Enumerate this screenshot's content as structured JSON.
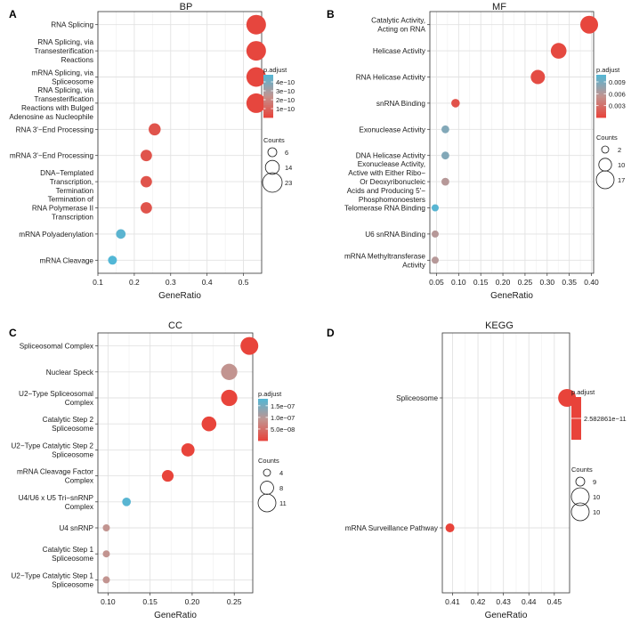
{
  "colors": {
    "low": "#e8433a",
    "mid": "#c29490",
    "high": "#52b7d6",
    "grid": "#e2e2e2"
  },
  "chart_data": [
    {
      "panel": "A",
      "title": "BP",
      "type": "scatter",
      "xlabel": "GeneRatio",
      "xlim": [
        0.1,
        0.55
      ],
      "xticks": [
        "0.1",
        "0.2",
        "0.3",
        "0.4",
        "0.5"
      ],
      "xtick_values": [
        0.1,
        0.2,
        0.3,
        0.4,
        0.5
      ],
      "categories": [
        [
          "RNA Splicing"
        ],
        [
          "RNA Splicing, via",
          "Transesterification",
          "Reactions"
        ],
        [
          "mRNA Splicing, via",
          "Spliceosome"
        ],
        [
          "RNA Splicing, via",
          "Transesterification",
          "Reactions with Bulged",
          "Adenosine as Nucleophile"
        ],
        [
          "RNA 3'−End Processing"
        ],
        [
          "mRNA 3'−End Processing"
        ],
        [
          "DNA−Templated",
          "Transcription,",
          "Termination"
        ],
        [
          "Termination of",
          "RNA Polymerase II",
          "Transcription"
        ],
        [
          "mRNA Polyadenylation"
        ],
        [
          "mRNA Cleavage"
        ]
      ],
      "points": [
        {
          "x": 0.535,
          "count": 23,
          "p": 1e-11
        },
        {
          "x": 0.535,
          "count": 23,
          "p": 1e-11
        },
        {
          "x": 0.535,
          "count": 23,
          "p": 1e-11
        },
        {
          "x": 0.535,
          "count": 23,
          "p": 1e-11
        },
        {
          "x": 0.256,
          "count": 11,
          "p": 5e-11
        },
        {
          "x": 0.233,
          "count": 10,
          "p": 5e-11
        },
        {
          "x": 0.233,
          "count": 10,
          "p": 5e-11
        },
        {
          "x": 0.233,
          "count": 10,
          "p": 5e-11
        },
        {
          "x": 0.163,
          "count": 7,
          "p": 4.6e-10
        },
        {
          "x": 0.14,
          "count": 6,
          "p": 4.8e-10
        }
      ],
      "color_legend": {
        "title": "p.adjust",
        "labels": [
          "4e−10",
          "3e−10",
          "2e−10",
          "1e−10"
        ],
        "values": [
          4e-10,
          3e-10,
          2e-10,
          1e-10
        ],
        "min": 0,
        "max": 4.8e-10
      },
      "size_legend": {
        "title": "Counts",
        "labels": [
          "6",
          "14",
          "23"
        ],
        "values": [
          6,
          14,
          23
        ]
      }
    },
    {
      "panel": "B",
      "title": "MF",
      "type": "scatter",
      "xlabel": "GeneRatio",
      "xlim": [
        0.035,
        0.405
      ],
      "xticks": [
        "0.05",
        "0.10",
        "0.15",
        "0.20",
        "0.25",
        "0.30",
        "0.35",
        "0.40"
      ],
      "xtick_values": [
        0.05,
        0.1,
        0.15,
        0.2,
        0.25,
        0.3,
        0.35,
        0.4
      ],
      "categories": [
        [
          "Catalytic Activity,",
          "Acting on RNA"
        ],
        [
          "Helicase Activity"
        ],
        [
          "RNA Helicase Activity"
        ],
        [
          "snRNA Binding"
        ],
        [
          "Exonuclease Activity"
        ],
        [
          "DNA Helicase Activity"
        ],
        [
          "Exonuclease Activity,",
          "Active with Either Ribo−",
          "Or Deoxyribonucleic",
          "Acids and Producing 5'−",
          "Phosphomonoesters"
        ],
        [
          "Telomerase RNA Binding"
        ],
        [
          "U6 snRNA Binding"
        ],
        [
          "mRNA Methyltransferase",
          "Activity"
        ]
      ],
      "points": [
        {
          "x": 0.395,
          "count": 17,
          "p": 0.0002
        },
        {
          "x": 0.326,
          "count": 14,
          "p": 0.0004
        },
        {
          "x": 0.279,
          "count": 12,
          "p": 0.0006
        },
        {
          "x": 0.093,
          "count": 4,
          "p": 0.001
        },
        {
          "x": 0.07,
          "count": 3,
          "p": 0.0085
        },
        {
          "x": 0.07,
          "count": 3,
          "p": 0.0085
        },
        {
          "x": 0.07,
          "count": 3,
          "p": 0.006
        },
        {
          "x": 0.047,
          "count": 2,
          "p": 0.0105
        },
        {
          "x": 0.047,
          "count": 2,
          "p": 0.006
        },
        {
          "x": 0.047,
          "count": 2,
          "p": 0.006
        }
      ],
      "color_legend": {
        "title": "p.adjust",
        "labels": [
          "0.009",
          "0.006",
          "0.003"
        ],
        "values": [
          0.009,
          0.006,
          0.003
        ],
        "min": 0,
        "max": 0.0108
      },
      "size_legend": {
        "title": "Counts",
        "labels": [
          "2",
          "10",
          "17"
        ],
        "values": [
          2,
          10,
          17
        ]
      }
    },
    {
      "panel": "C",
      "title": "CC",
      "type": "scatter",
      "xlabel": "GeneRatio",
      "xlim": [
        0.088,
        0.272
      ],
      "xticks": [
        "0.10",
        "0.15",
        "0.20",
        "0.25"
      ],
      "xtick_values": [
        0.1,
        0.15,
        0.2,
        0.25
      ],
      "categories": [
        [
          "Spliceosomal Complex"
        ],
        [
          "Nuclear Speck"
        ],
        [
          "U2−Type Spliceosomal",
          "Complex"
        ],
        [
          "Catalytic Step 2",
          "Spliceosome"
        ],
        [
          "U2−Type Catalytic Step 2",
          "Spliceosome"
        ],
        [
          "mRNA Cleavage Factor",
          "Complex"
        ],
        [
          "U4/U6 x U5 Tri−snRNP",
          "Complex"
        ],
        [
          "U4 snRNP"
        ],
        [
          "Catalytic Step 1",
          "Spliceosome"
        ],
        [
          "U2−Type Catalytic Step 1",
          "Spliceosome"
        ]
      ],
      "points": [
        {
          "x": 0.268,
          "count": 11,
          "p": 1e-09
        },
        {
          "x": 0.244,
          "count": 10,
          "p": 9e-08
        },
        {
          "x": 0.244,
          "count": 10,
          "p": 1e-09
        },
        {
          "x": 0.22,
          "count": 9,
          "p": 1e-09
        },
        {
          "x": 0.195,
          "count": 8,
          "p": 1e-09
        },
        {
          "x": 0.171,
          "count": 7,
          "p": 1e-09
        },
        {
          "x": 0.122,
          "count": 5,
          "p": 1.75e-07
        },
        {
          "x": 0.098,
          "count": 4,
          "p": 9e-08
        },
        {
          "x": 0.098,
          "count": 4,
          "p": 9e-08
        },
        {
          "x": 0.098,
          "count": 4,
          "p": 9e-08
        }
      ],
      "color_legend": {
        "title": "p.adjust",
        "labels": [
          "1.5e−07",
          "1.0e−07",
          "5.0e−08"
        ],
        "values": [
          1.5e-07,
          1e-07,
          5e-08
        ],
        "min": 0,
        "max": 1.8e-07
      },
      "size_legend": {
        "title": "Counts",
        "labels": [
          "4",
          "8",
          "11"
        ],
        "values": [
          4,
          8,
          11
        ]
      }
    },
    {
      "panel": "D",
      "title": "KEGG",
      "type": "scatter",
      "xlabel": "GeneRatio",
      "xlim": [
        0.406,
        0.456
      ],
      "xticks": [
        "0.41",
        "0.42",
        "0.43",
        "0.44",
        "0.45"
      ],
      "xtick_values": [
        0.41,
        0.42,
        0.43,
        0.44,
        0.45
      ],
      "categories": [
        [
          "Spliceosome"
        ],
        [
          "mRNA Surveillance Pathway"
        ]
      ],
      "points": [
        {
          "x": 0.455,
          "count": 10,
          "p": 2.582861e-11
        },
        {
          "x": 0.409,
          "count": 9,
          "p": 2.582861e-11
        }
      ],
      "color_legend": {
        "title": "p.adjust",
        "labels": [
          "2.582861e−11"
        ],
        "values": [
          2.582861e-11
        ],
        "min": 0,
        "max": 1,
        "single": true
      },
      "size_legend": {
        "title": "Counts",
        "labels": [
          "9",
          "10",
          "10"
        ],
        "values": [
          9,
          10,
          10
        ]
      }
    }
  ]
}
